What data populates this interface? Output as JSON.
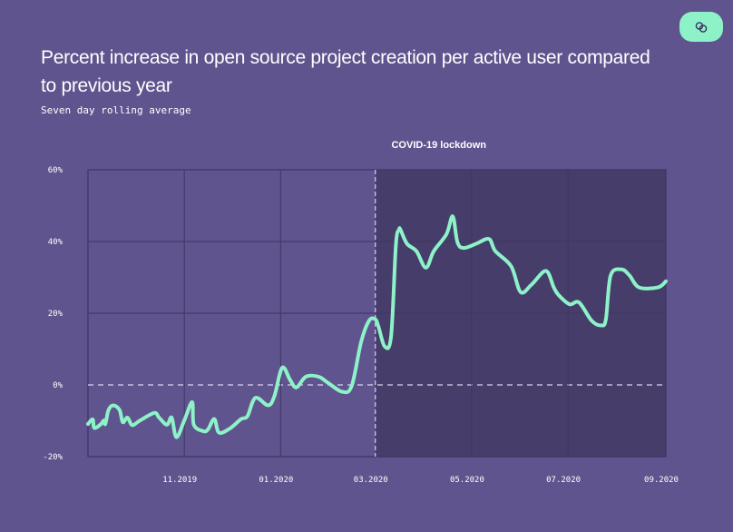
{
  "header": {
    "title": "Percent increase in open source project creation per active user compared to previous year",
    "subtitle": "Seven day rolling average",
    "link_button_icon": "link-icon"
  },
  "colors": {
    "background": "#5f548e",
    "shaded_region": "#463d6b",
    "line": "#8ef2c9",
    "grid": "#3e3563",
    "button": "#8ef2c9"
  },
  "chart_data": {
    "type": "line",
    "title": "Percent increase in open source project creation per active user compared to previous year",
    "subtitle": "Seven day rolling average",
    "xlabel": "",
    "ylabel": "",
    "xlim": [
      "2019-09-01",
      "2020-09-01"
    ],
    "ylim": [
      -20,
      60
    ],
    "grid": true,
    "yticks": [
      {
        "value": 60,
        "label": "60%"
      },
      {
        "value": 40,
        "label": "40%"
      },
      {
        "value": 20,
        "label": "20%"
      },
      {
        "value": 0,
        "label": "0%"
      },
      {
        "value": -20,
        "label": "-20%"
      }
    ],
    "xticks": [
      {
        "value": "2019-11-01",
        "label": "11.2019"
      },
      {
        "value": "2020-01-01",
        "label": "01.2020"
      },
      {
        "value": "2020-03-01",
        "label": "03.2020"
      },
      {
        "value": "2020-05-01",
        "label": "05.2020"
      },
      {
        "value": "2020-07-01",
        "label": "07.2020"
      },
      {
        "value": "2020-09-01",
        "label": "09.2020"
      }
    ],
    "annotation": {
      "label": "COVID-19 lockdown",
      "start": "2020-03-01",
      "end": "2020-09-01"
    },
    "series": [
      {
        "x": [
          "2019-09-01",
          "2019-09-04",
          "2019-09-05",
          "2019-09-09",
          "2019-09-11",
          "2019-09-12",
          "2019-09-14",
          "2019-09-17",
          "2019-09-21",
          "2019-09-23",
          "2019-09-26",
          "2019-09-29",
          "2019-10-04",
          "2019-10-13",
          "2019-10-16",
          "2019-10-21",
          "2019-10-24",
          "2019-10-27",
          "2019-11-01",
          "2019-11-06",
          "2019-11-07",
          "2019-11-13",
          "2019-11-16",
          "2019-11-20",
          "2019-11-23",
          "2019-11-30",
          "2019-12-07",
          "2019-12-11",
          "2019-12-16",
          "2019-12-24",
          "2019-12-28",
          "2020-01-02",
          "2020-01-07",
          "2020-01-11",
          "2020-01-17",
          "2020-01-25",
          "2020-01-31",
          "2020-02-09",
          "2020-02-15",
          "2020-02-21",
          "2020-02-26",
          "2020-03-01",
          "2020-03-03",
          "2020-03-07",
          "2020-03-11",
          "2020-03-14",
          "2020-03-16",
          "2020-03-17",
          "2020-03-21",
          "2020-03-27",
          "2020-04-02",
          "2020-04-07",
          "2020-04-15",
          "2020-04-19",
          "2020-04-22",
          "2020-04-26",
          "2020-05-04",
          "2020-05-12",
          "2020-05-16",
          "2020-05-26",
          "2020-06-01",
          "2020-06-08",
          "2020-06-17",
          "2020-06-22",
          "2020-06-25",
          "2020-07-02",
          "2020-07-08",
          "2020-07-16",
          "2020-07-22",
          "2020-07-25",
          "2020-07-28",
          "2020-08-04",
          "2020-08-09",
          "2020-08-15",
          "2020-08-27",
          "2020-09-01"
        ],
        "y": [
          -10.9,
          -9.6,
          -12,
          -11,
          -9.9,
          -10.9,
          -7,
          -5.7,
          -7,
          -10.4,
          -9.1,
          -11.2,
          -9.9,
          -7.8,
          -9.1,
          -11.1,
          -9.1,
          -14.6,
          -9.9,
          -4.8,
          -11.1,
          -12.9,
          -12.4,
          -9.5,
          -13.3,
          -12.1,
          -9.5,
          -8.7,
          -3.6,
          -5.7,
          -3.2,
          4.8,
          1.4,
          -0.7,
          2.3,
          2.3,
          0.6,
          -1.9,
          -0.3,
          12,
          17.9,
          18.3,
          16.2,
          10.7,
          13.7,
          39,
          43.3,
          43.2,
          39.4,
          37.3,
          32.7,
          37.3,
          42,
          47,
          39.8,
          38.2,
          39.4,
          40.7,
          37.3,
          33.1,
          25.9,
          28,
          31.8,
          27.2,
          25.1,
          22.5,
          23,
          17.9,
          16.6,
          18.3,
          30.5,
          32.2,
          30.5,
          27.2,
          27.2,
          28.9
        ]
      }
    ]
  }
}
